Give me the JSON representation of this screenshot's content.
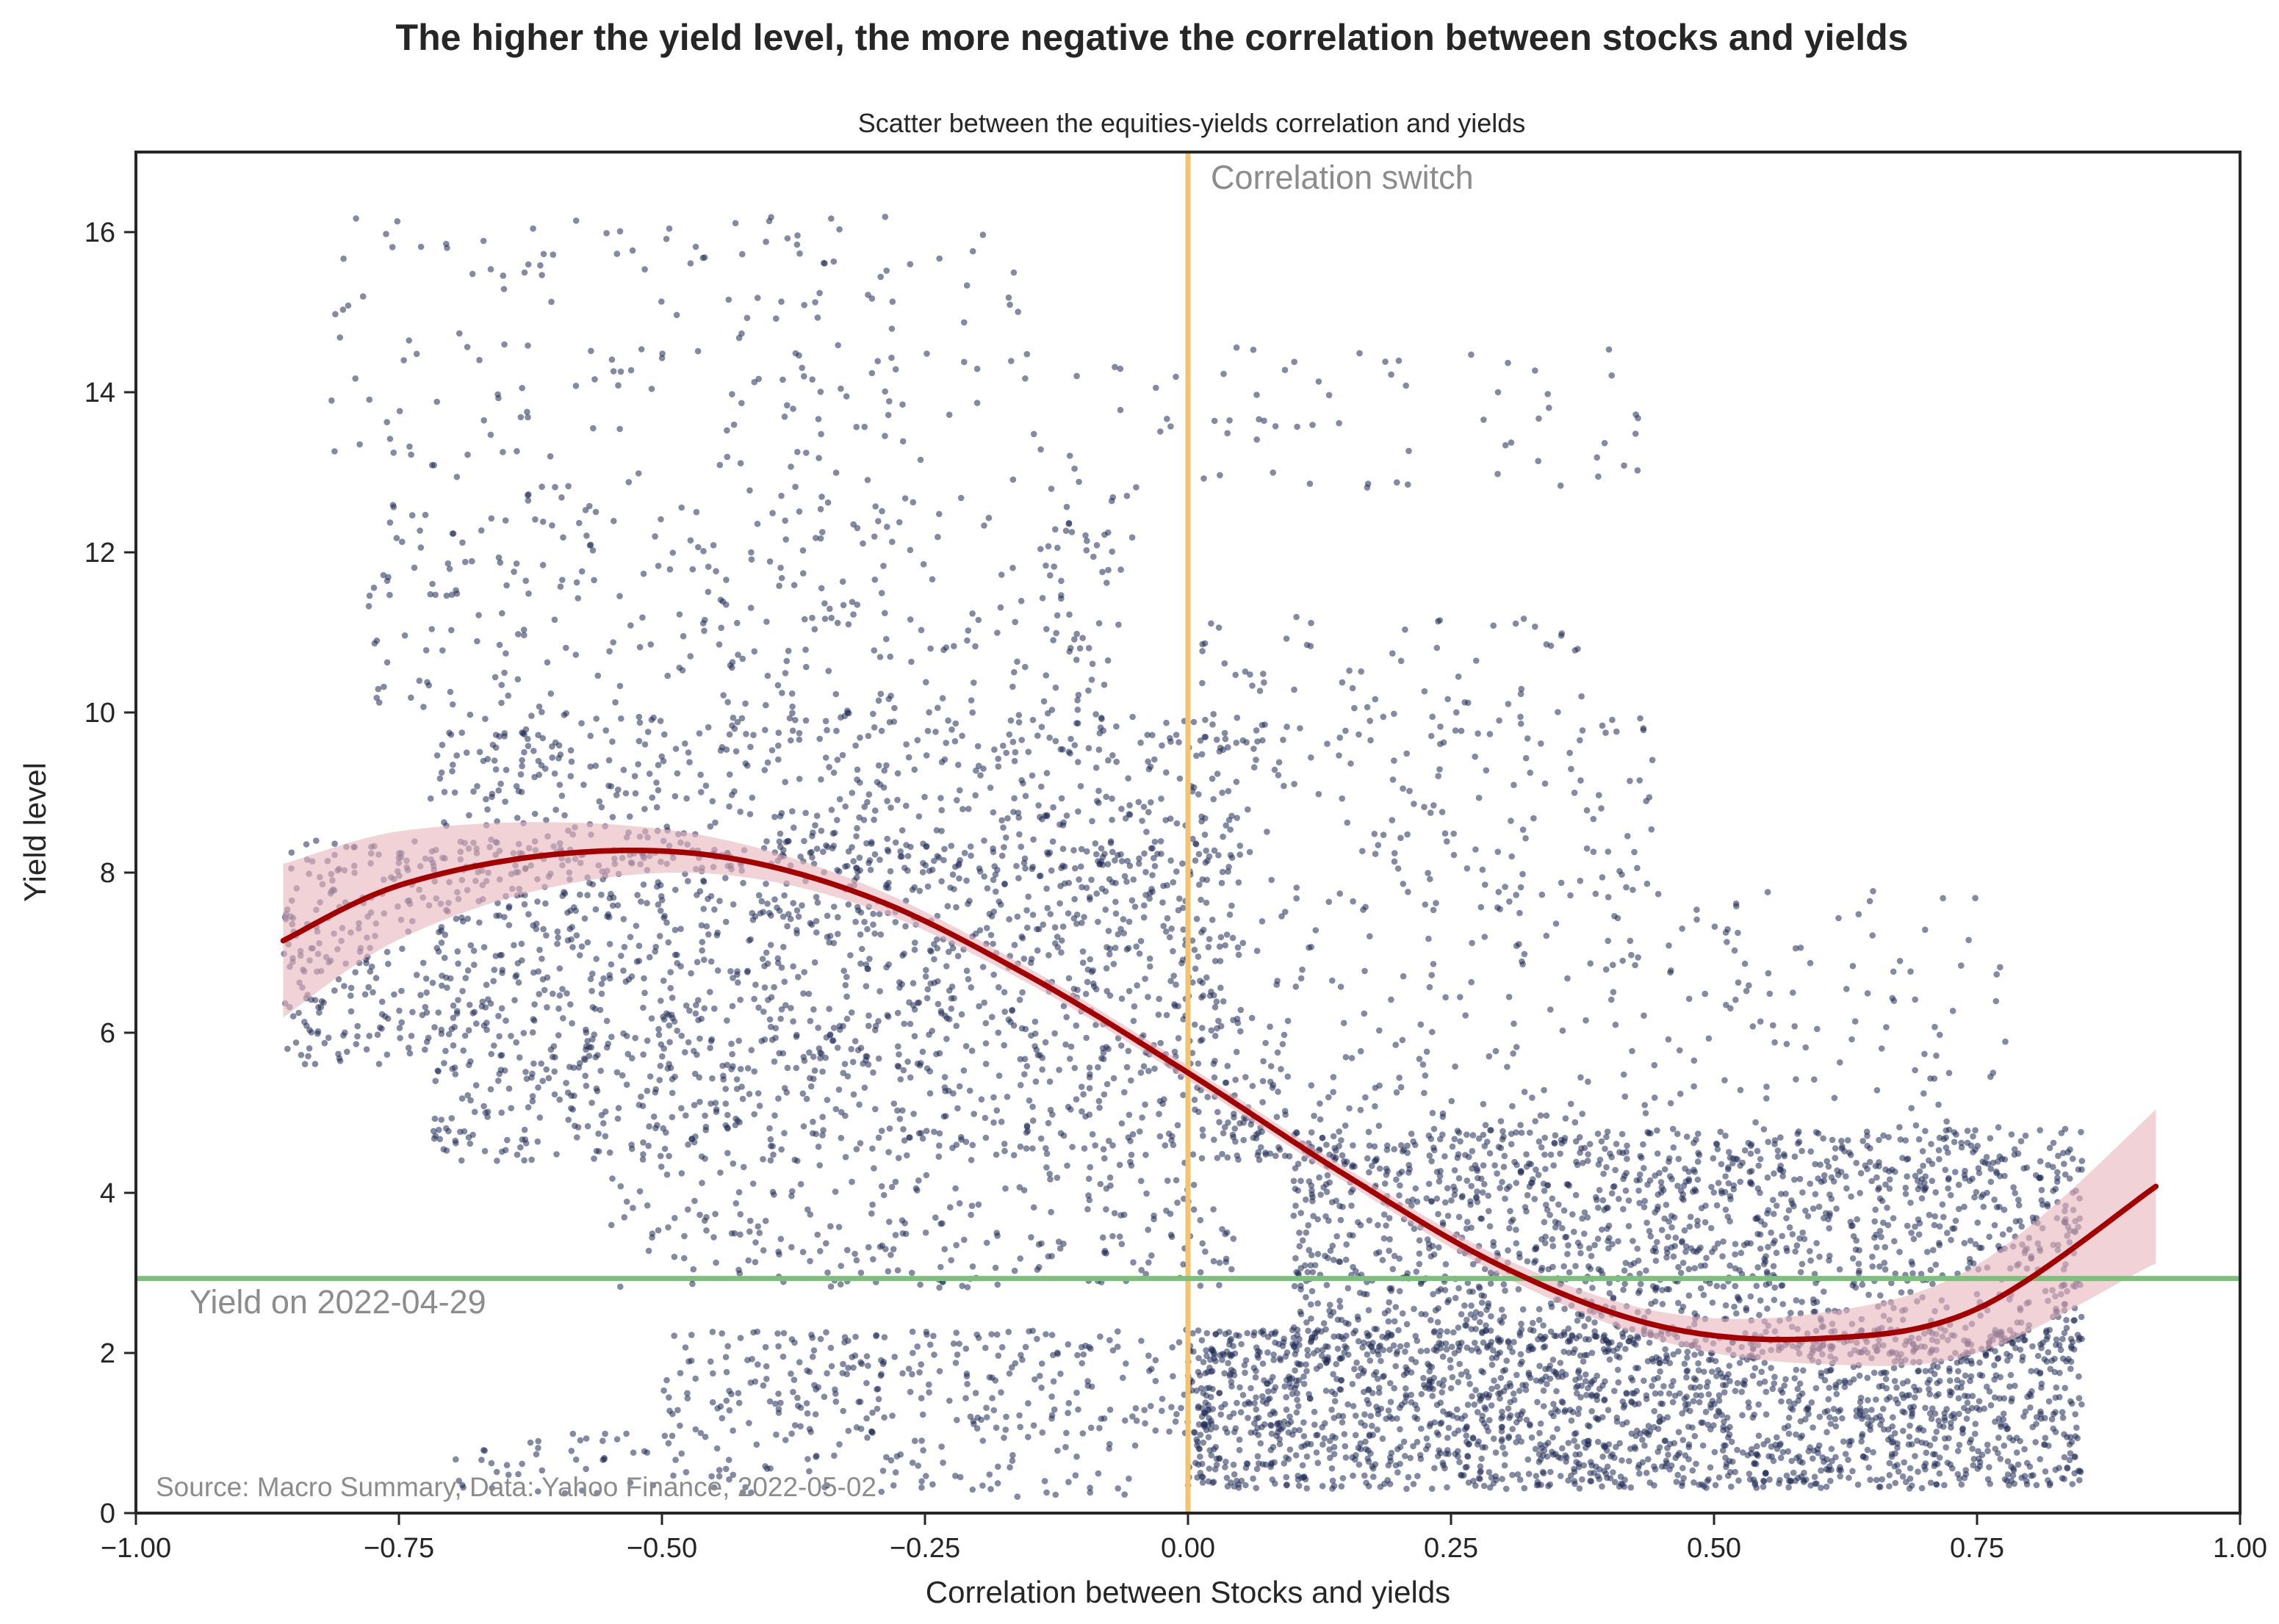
{
  "chart_data": {
    "type": "scatter",
    "suptitle": "The higher the yield level, the more negative the correlation between stocks and yields",
    "title": "Scatter between the equities-yields correlation and yields",
    "xlabel": "Correlation between Stocks and yields",
    "ylabel": "Yield level",
    "xlim": [
      -1.0,
      1.0
    ],
    "ylim": [
      0,
      17
    ],
    "xticks": [
      -1.0,
      -0.75,
      -0.5,
      -0.25,
      0.0,
      0.25,
      0.5,
      0.75,
      1.0
    ],
    "xtick_labels": [
      "−1.00",
      "−0.75",
      "−0.50",
      "−0.25",
      "0.00",
      "0.25",
      "0.50",
      "0.75",
      "1.00"
    ],
    "yticks": [
      0,
      2,
      4,
      6,
      8,
      10,
      12,
      14,
      16
    ],
    "ytick_labels": [
      "0",
      "2",
      "4",
      "6",
      "8",
      "10",
      "12",
      "14",
      "16"
    ],
    "grid": false,
    "colors": {
      "points": "#1f2a55",
      "fit_line": "#a30000",
      "fit_band": "#e8b4bc",
      "vline": "#f2c46d",
      "hline": "#7cc07c",
      "annotation": "#8c8c8c"
    },
    "point_clusters": [
      {
        "x": [
          -0.82,
          -0.15
        ],
        "y": [
          12.8,
          16.2
        ],
        "n": 190
      },
      {
        "x": [
          -0.15,
          0.45
        ],
        "y": [
          12.8,
          14.6
        ],
        "n": 70
      },
      {
        "x": [
          -0.78,
          -0.05
        ],
        "y": [
          10.0,
          12.8
        ],
        "n": 330
      },
      {
        "x": [
          0.0,
          0.38
        ],
        "y": [
          9.6,
          11.2
        ],
        "n": 80
      },
      {
        "x": [
          -0.72,
          0.05
        ],
        "y": [
          8.0,
          10.0
        ],
        "n": 560
      },
      {
        "x": [
          0.05,
          0.45
        ],
        "y": [
          7.6,
          10.0
        ],
        "n": 120
      },
      {
        "x": [
          -0.86,
          0.05
        ],
        "y": [
          5.6,
          8.4
        ],
        "n": 1300
      },
      {
        "x": [
          -0.72,
          0.1
        ],
        "y": [
          4.4,
          5.6
        ],
        "n": 450
      },
      {
        "x": [
          0.05,
          0.78
        ],
        "y": [
          4.0,
          7.8
        ],
        "n": 330
      },
      {
        "x": [
          -0.55,
          0.05
        ],
        "y": [
          2.8,
          4.4
        ],
        "n": 240
      },
      {
        "x": [
          0.1,
          0.85
        ],
        "y": [
          2.0,
          4.8
        ],
        "n": 1500
      },
      {
        "x": [
          -0.5,
          0.1
        ],
        "y": [
          1.0,
          2.3
        ],
        "n": 330
      },
      {
        "x": [
          0.0,
          0.85
        ],
        "y": [
          0.3,
          2.3
        ],
        "n": 1900
      },
      {
        "x": [
          -0.7,
          -0.05
        ],
        "y": [
          0.2,
          1.0
        ],
        "n": 130
      }
    ],
    "fit_curve": {
      "type": "polynomial",
      "x": [
        -0.86,
        -0.75,
        -0.6,
        -0.45,
        -0.3,
        -0.15,
        0.0,
        0.15,
        0.3,
        0.45,
        0.6,
        0.75,
        0.92
      ],
      "y": [
        7.15,
        7.84,
        8.23,
        8.21,
        7.68,
        6.7,
        5.5,
        4.22,
        3.07,
        2.33,
        2.18,
        2.55,
        4.08
      ]
    },
    "vline": {
      "x": 0.0,
      "label": "Correlation switch"
    },
    "hline": {
      "y": 2.93,
      "label": "Yield on 2022-04-29"
    },
    "source": "Source: Macro Summary, Data: Yahoo Finance, 2022-05-02"
  }
}
